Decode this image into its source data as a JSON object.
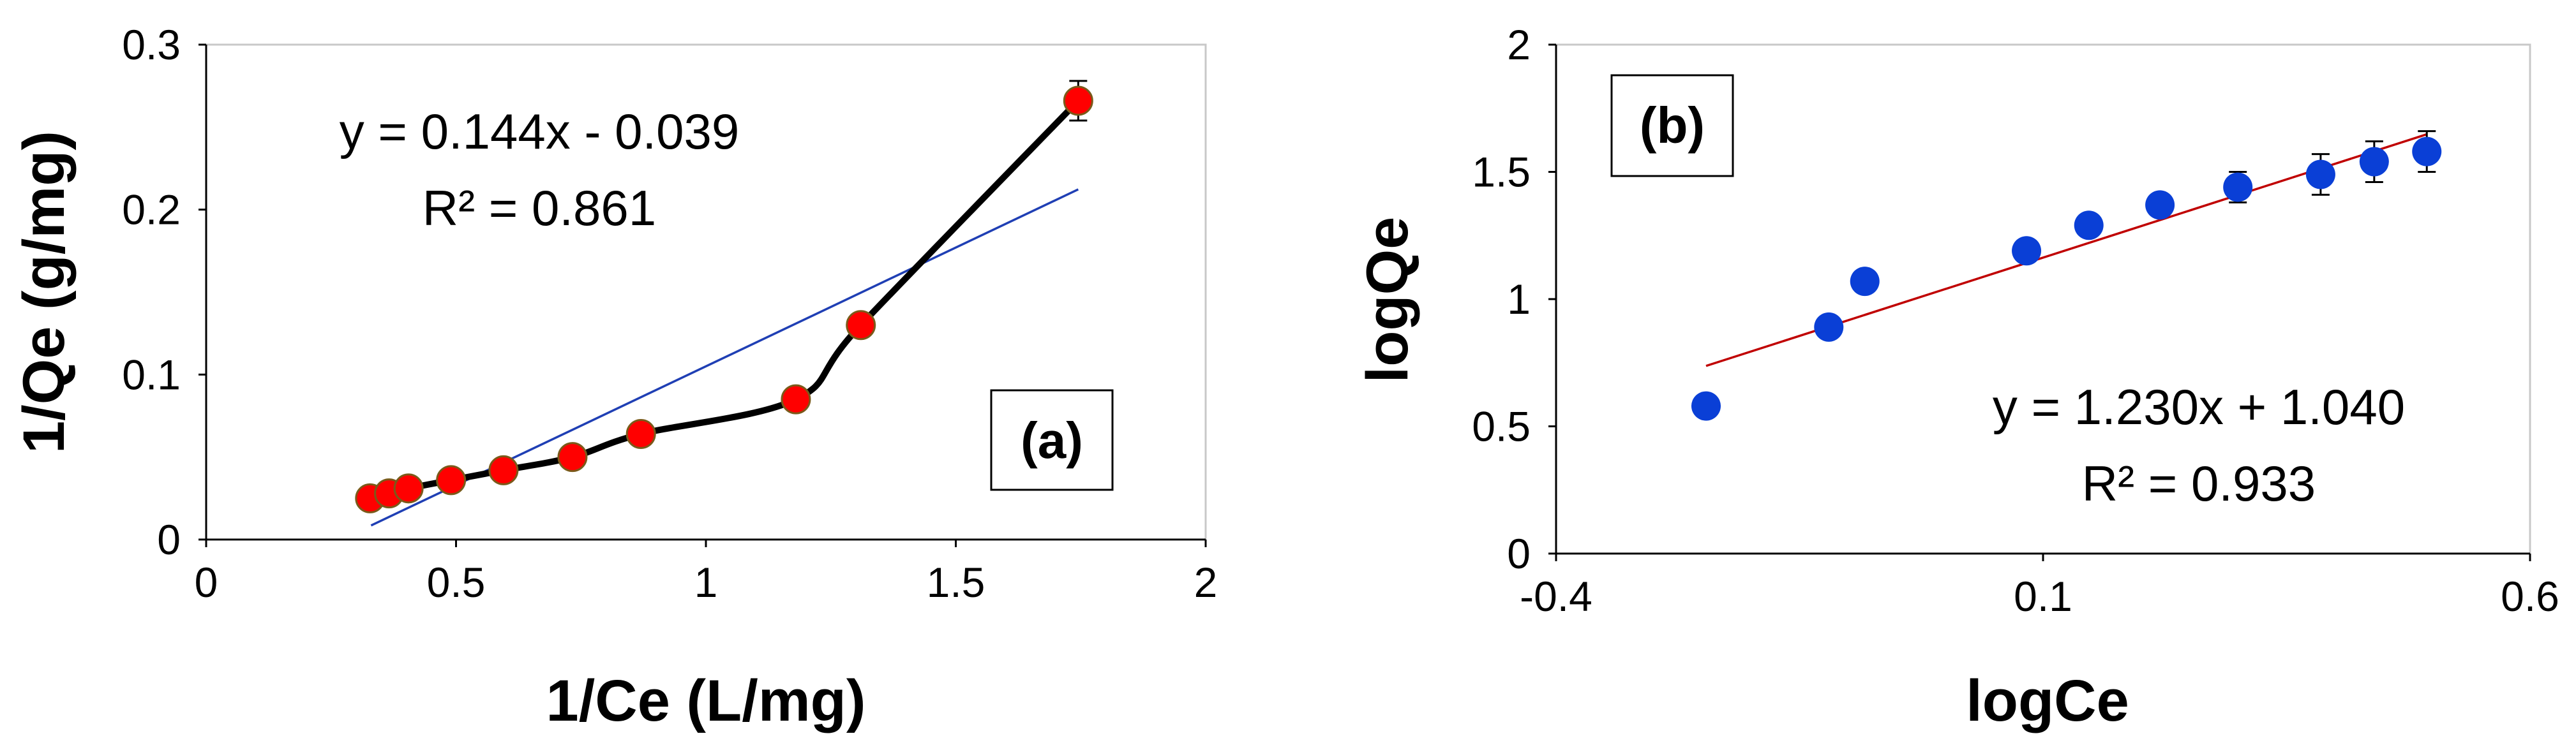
{
  "chart_data": [
    {
      "type": "scatter",
      "panel_label": "(a)",
      "xlabel": "1/Ce (L/mg)",
      "ylabel": "1/Qe (g/mg)",
      "xlim": [
        0,
        2
      ],
      "ylim": [
        0,
        0.3
      ],
      "xticks": [
        0,
        0.5,
        1,
        1.5,
        2
      ],
      "xtick_labels": [
        "0",
        "0.5",
        "1",
        "1.5",
        "2"
      ],
      "yticks": [
        0,
        0.1,
        0.2,
        0.3
      ],
      "ytick_labels": [
        "0",
        "0.1",
        "0.2",
        "0.3"
      ],
      "grid": false,
      "marker_color": "#ff0000",
      "marker_edge_color": "#7a5a1a",
      "line_color": "#000000",
      "trend_color": "#1f3fb4",
      "connector_line": true,
      "series": [
        {
          "x": [
            0.328,
            0.366,
            0.405,
            0.49,
            0.595,
            0.733,
            0.87,
            1.18,
            1.31,
            1.745
          ],
          "y": [
            0.025,
            0.028,
            0.031,
            0.036,
            0.042,
            0.05,
            0.064,
            0.085,
            0.13,
            0.266
          ],
          "error": [
            0.003,
            0.003,
            0.003,
            0.003,
            0.003,
            0.003,
            0.003,
            0.003,
            0.003,
            0.012
          ]
        }
      ],
      "trendline": {
        "slope": 0.144,
        "intercept": -0.039,
        "x_range": [
          0.33,
          1.745
        ]
      },
      "equation": "y = 0.144x - 0.039",
      "r_squared": "R² = 0.861"
    },
    {
      "type": "scatter",
      "panel_label": "(b)",
      "xlabel": "logCe",
      "ylabel": "logQe",
      "xlim": [
        -0.4,
        0.6
      ],
      "ylim": [
        0,
        2
      ],
      "xticks": [
        -0.4,
        0.1,
        0.6
      ],
      "xtick_labels": [
        "-0.4",
        "0.1",
        "0.6"
      ],
      "yticks": [
        0,
        0.5,
        1,
        1.5,
        2
      ],
      "ytick_labels": [
        "0",
        "0.5",
        "1",
        "1.5",
        "2"
      ],
      "grid": false,
      "marker_color": "#0a3fd6",
      "trend_color": "#c00000",
      "series": [
        {
          "x": [
            -0.246,
            -0.12,
            -0.083,
            0.083,
            0.147,
            0.22,
            0.3,
            0.385,
            0.44,
            0.494
          ],
          "y": [
            0.58,
            0.89,
            1.07,
            1.19,
            1.29,
            1.37,
            1.44,
            1.49,
            1.54,
            1.58
          ],
          "error": [
            0.01,
            0.01,
            0.01,
            0.02,
            0.02,
            0.04,
            0.06,
            0.08,
            0.08,
            0.08
          ]
        }
      ],
      "trendline": {
        "slope": 1.23,
        "intercept": 1.04,
        "x_range": [
          -0.246,
          0.494
        ]
      },
      "equation": "y = 1.230x + 1.040",
      "r_squared": "R² = 0.933"
    }
  ]
}
